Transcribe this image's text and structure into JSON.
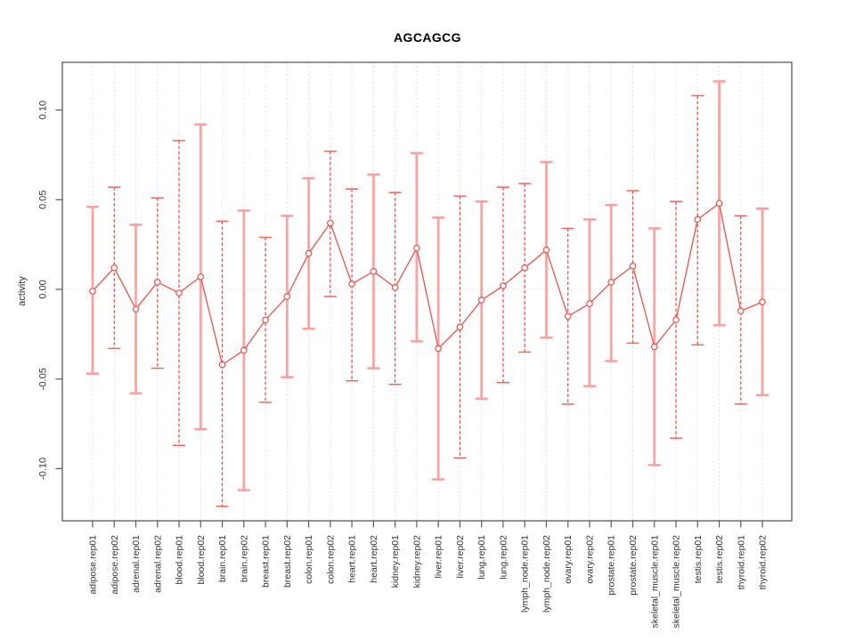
{
  "chart_data": {
    "type": "line",
    "title": "AGCAGCG",
    "xlabel": "",
    "ylabel": "activity",
    "ylim": [
      -0.13,
      0.12
    ],
    "yticks": [
      -0.1,
      -0.05,
      0.0,
      0.05,
      0.1
    ],
    "ytick_labels": [
      "-0.10",
      "-0.05",
      "0.00",
      "0.05",
      "0.10"
    ],
    "grid": "dotted vertical gridline at each category; dotted horizontal line at y=0",
    "legend": "none",
    "marker": "open-circle",
    "categories": [
      "adipose.rep01",
      "adipose.rep02",
      "adrenal.rep01",
      "adrenal.rep02",
      "blood.rep01",
      "blood.rep02",
      "brain.rep01",
      "brain.rep02",
      "breast.rep01",
      "breast.rep02",
      "colon.rep01",
      "colon.rep02",
      "heart.rep01",
      "heart.rep02",
      "kidney.rep01",
      "kidney.rep02",
      "liver.rep01",
      "liver.rep02",
      "lung.rep01",
      "lung.rep02",
      "lymph_node.rep01",
      "lymph_node.rep02",
      "ovary.rep01",
      "ovary.rep02",
      "prostate.rep01",
      "prostate.rep02",
      "skeletal_muscle.rep01",
      "skeletal_muscle.rep02",
      "testis.rep01",
      "testis.rep02",
      "thyroid.rep01",
      "thyroid.rep02"
    ],
    "series": [
      {
        "name": "activity",
        "values": [
          -0.001,
          0.012,
          -0.011,
          0.004,
          -0.002,
          0.007,
          -0.042,
          -0.034,
          -0.017,
          -0.004,
          0.02,
          0.037,
          0.003,
          0.01,
          0.001,
          0.023,
          -0.033,
          -0.021,
          -0.006,
          0.002,
          0.012,
          0.022,
          -0.015,
          -0.008,
          0.004,
          0.013,
          -0.032,
          -0.017,
          0.039,
          0.048,
          -0.012,
          -0.007
        ],
        "error_high": [
          0.046,
          0.057,
          0.036,
          0.051,
          0.083,
          0.092,
          0.038,
          0.044,
          0.029,
          0.041,
          0.062,
          0.077,
          0.056,
          0.064,
          0.054,
          0.076,
          0.04,
          0.052,
          0.049,
          0.057,
          0.059,
          0.071,
          0.034,
          0.039,
          0.047,
          0.055,
          0.034,
          0.049,
          0.108,
          0.116,
          0.041,
          0.045
        ],
        "error_low": [
          -0.047,
          -0.033,
          -0.058,
          -0.044,
          -0.087,
          -0.078,
          -0.121,
          -0.112,
          -0.063,
          -0.049,
          -0.022,
          -0.004,
          -0.051,
          -0.044,
          -0.053,
          -0.029,
          -0.106,
          -0.094,
          -0.061,
          -0.052,
          -0.035,
          -0.027,
          -0.064,
          -0.054,
          -0.04,
          -0.03,
          -0.098,
          -0.083,
          -0.031,
          -0.02,
          -0.064,
          -0.059
        ],
        "error_bar_styles": [
          "solid",
          "dashed",
          "solid",
          "dashed",
          "dashed",
          "solid",
          "dashed",
          "solid",
          "dashed",
          "solid",
          "solid",
          "dashed",
          "dashed",
          "solid",
          "dashed",
          "solid",
          "solid",
          "dashed",
          "solid",
          "dashed",
          "dashed",
          "solid",
          "dashed",
          "solid",
          "solid",
          "dashed",
          "solid",
          "dashed",
          "dashed",
          "solid",
          "dashed",
          "solid"
        ]
      }
    ],
    "colors": {
      "line": "#f0524a",
      "marker": "#f0524a",
      "error_bar_dashed": "#ef453d",
      "error_bar_solid": "#ffa3a1",
      "cap_dashed": "#f3655e",
      "cap_solid": "#ff9e9c",
      "gridline": "#d9d9d9",
      "frame": "#595959",
      "tick_text": "#303030",
      "title_text": "#000000"
    }
  }
}
